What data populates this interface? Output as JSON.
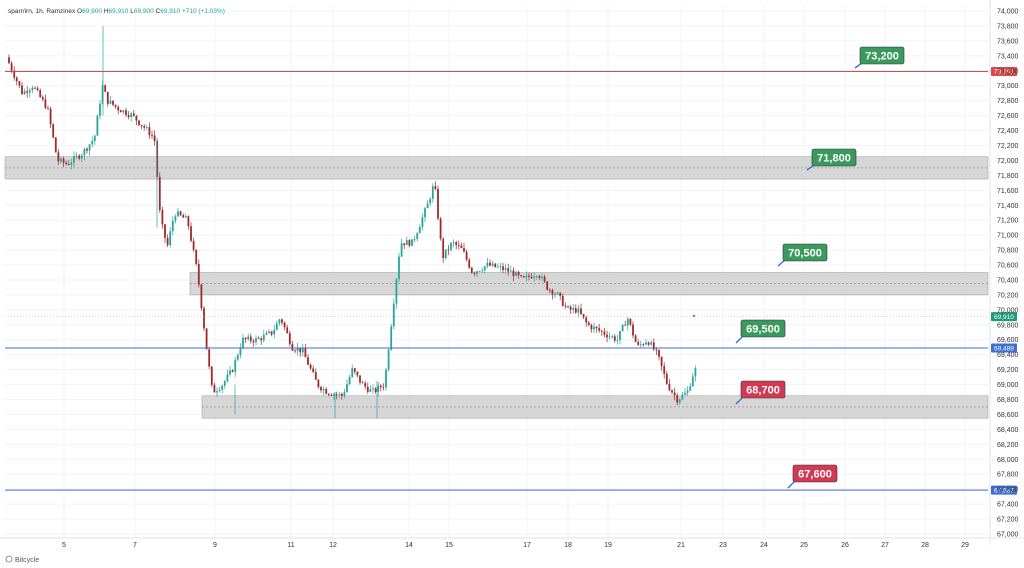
{
  "chart_data": {
    "type": "candlestick",
    "header": {
      "symbol": "sparr/irn",
      "interval": "1h",
      "exchange": "Ramzinex",
      "open_label": "O",
      "open": "69,900",
      "high_label": "H",
      "high": "69,910",
      "low_label": "L",
      "low": "69,900",
      "close_label": "C",
      "close": "69,910",
      "change": "+710 (+1.03%)"
    },
    "ylim": [
      67000,
      74000
    ],
    "y_ticks": [
      "67,000",
      "67,200",
      "67,400",
      "67,600",
      "67,800",
      "68,000",
      "68,200",
      "68,400",
      "68,600",
      "68,800",
      "69,000",
      "69,200",
      "69,400",
      "69,600",
      "69,800",
      "70,000",
      "70,200",
      "70,400",
      "70,600",
      "70,800",
      "71,000",
      "71,200",
      "71,400",
      "71,600",
      "71,800",
      "72,000",
      "72,200",
      "72,400",
      "72,600",
      "72,800",
      "73,000",
      "73,200",
      "73,400",
      "73,600",
      "73,800",
      "74,000"
    ],
    "x_ticks": [
      "5",
      "7",
      "9",
      "11",
      "12",
      "14",
      "15",
      "17",
      "18",
      "19",
      "21",
      "23",
      "24",
      "25",
      "26",
      "27",
      "28",
      "29"
    ],
    "path": [
      [
        0,
        73500
      ],
      [
        10,
        73200
      ],
      [
        20,
        72900
      ],
      [
        30,
        73000
      ],
      [
        45,
        72700
      ],
      [
        55,
        72000
      ],
      [
        65,
        71950
      ],
      [
        80,
        72100
      ],
      [
        92,
        72300
      ],
      [
        100,
        73000
      ],
      [
        105,
        72800
      ],
      [
        115,
        72700
      ],
      [
        130,
        72600
      ],
      [
        145,
        72400
      ],
      [
        152,
        72300
      ],
      [
        158,
        71200
      ],
      [
        165,
        70850
      ],
      [
        172,
        71300
      ],
      [
        185,
        71200
      ],
      [
        195,
        70500
      ],
      [
        205,
        69400
      ],
      [
        210,
        68900
      ],
      [
        220,
        69000
      ],
      [
        230,
        69200
      ],
      [
        240,
        69600
      ],
      [
        255,
        69600
      ],
      [
        270,
        69700
      ],
      [
        278,
        69900
      ],
      [
        290,
        69500
      ],
      [
        300,
        69450
      ],
      [
        315,
        69000
      ],
      [
        325,
        68900
      ],
      [
        340,
        68850
      ],
      [
        350,
        69200
      ],
      [
        360,
        69000
      ],
      [
        370,
        68900
      ],
      [
        382,
        69000
      ],
      [
        392,
        70200
      ],
      [
        398,
        70900
      ],
      [
        410,
        70900
      ],
      [
        425,
        71400
      ],
      [
        432,
        71700
      ],
      [
        440,
        70700
      ],
      [
        450,
        70900
      ],
      [
        460,
        70800
      ],
      [
        470,
        70500
      ],
      [
        485,
        70600
      ],
      [
        500,
        70550
      ],
      [
        510,
        70500
      ],
      [
        520,
        70400
      ],
      [
        535,
        70500
      ],
      [
        545,
        70300
      ],
      [
        555,
        70200
      ],
      [
        565,
        70000
      ],
      [
        575,
        70000
      ],
      [
        585,
        69800
      ],
      [
        600,
        69700
      ],
      [
        615,
        69600
      ],
      [
        625,
        69900
      ],
      [
        635,
        69500
      ],
      [
        645,
        69600
      ],
      [
        655,
        69400
      ],
      [
        665,
        69000
      ],
      [
        675,
        68800
      ],
      [
        685,
        68900
      ],
      [
        692,
        69200
      ]
    ],
    "zones": [
      {
        "y0": 71750,
        "y1": 72050,
        "x0": 5
      },
      {
        "y0": 70200,
        "y1": 70500,
        "x0": 190
      },
      {
        "y0": 68550,
        "y1": 68850,
        "x0": 202
      }
    ],
    "levels": [
      {
        "value": 73191,
        "color": "#e04848",
        "tag": "73,191"
      },
      {
        "value": 69489,
        "color": "#3d6fd1",
        "tag": "69,489"
      },
      {
        "value": 67587,
        "color": "#3d6fd1",
        "tag": "67,587"
      }
    ],
    "current_price": {
      "value": 69910,
      "tag": "69,910",
      "color": "#1f9a7a"
    },
    "annotations": [
      {
        "text": "73,200",
        "color": "#3a9a5e",
        "value": 73200,
        "box_x": 860,
        "box_y": 47,
        "ptr_x": 855,
        "ptr_y": 68
      },
      {
        "text": "71,800",
        "color": "#3a9a5e",
        "value": 71800,
        "box_x": 812,
        "box_y": 149,
        "ptr_x": 807,
        "ptr_y": 170
      },
      {
        "text": "70,500",
        "color": "#3a9a5e",
        "value": 70500,
        "box_x": 783,
        "box_y": 244,
        "ptr_x": 778,
        "ptr_y": 266
      },
      {
        "text": "69,500",
        "color": "#3a9a5e",
        "value": 69500,
        "box_x": 741,
        "box_y": 320,
        "ptr_x": 736,
        "ptr_y": 343
      },
      {
        "text": "68,700",
        "color": "#d13a55",
        "value": 68700,
        "box_x": 741,
        "box_y": 381,
        "ptr_x": 736,
        "ptr_y": 404
      },
      {
        "text": "67,600",
        "color": "#d13a55",
        "value": 67600,
        "box_x": 793,
        "box_y": 465,
        "ptr_x": 788,
        "ptr_y": 488
      }
    ],
    "colors": {
      "up": "#26a69a",
      "down": "#9e2a2a",
      "zone": "#cfcfcf",
      "zone_border": "#a8a8a8"
    }
  },
  "watermark": "Bitcycle"
}
